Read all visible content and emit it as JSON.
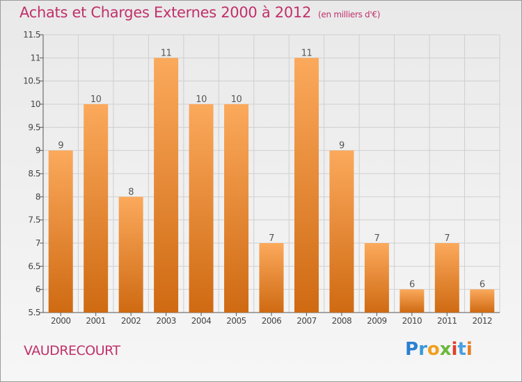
{
  "header": {
    "title": "Achats et Charges Externes 2000 à 2012",
    "unit": "(en milliers d'€)"
  },
  "footer": {
    "commune": "VAUDRECOURT",
    "logo": "Proxiti"
  },
  "colors": {
    "title": "#c0306a",
    "bar_top": "#f9a85a",
    "bar_bottom": "#d26e14",
    "grid": "#cfcfcf"
  },
  "chart_data": {
    "type": "bar",
    "categories": [
      "2000",
      "2001",
      "2002",
      "2003",
      "2004",
      "2005",
      "2006",
      "2007",
      "2008",
      "2009",
      "2010",
      "2011",
      "2012"
    ],
    "values": [
      9,
      10,
      8,
      11,
      10,
      10,
      7,
      11,
      9,
      7,
      6,
      7,
      6
    ],
    "title": "Achats et Charges Externes 2000 à 2012",
    "subtitle": "(en milliers d'€)",
    "xlabel": "",
    "ylabel": "",
    "ylim": [
      5.5,
      11.5
    ],
    "yticks": [
      "5.5",
      "6",
      "6.5",
      "7",
      "7.5",
      "8",
      "8.5",
      "9",
      "9.5",
      "10",
      "10.5",
      "11",
      "11.5"
    ],
    "grid": "horizontal",
    "legend": "none"
  }
}
